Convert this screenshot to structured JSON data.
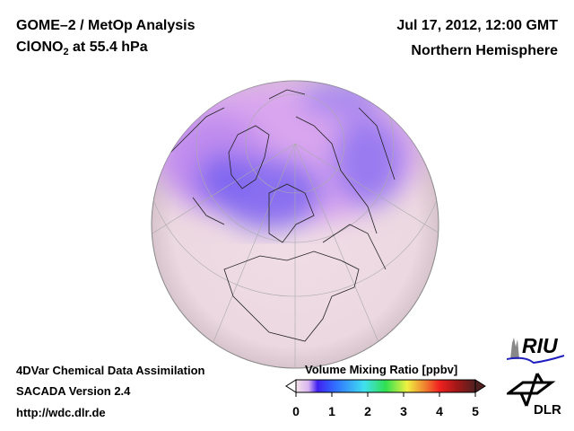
{
  "header": {
    "title_line1": "GOME–2 / MetOp Analysis",
    "title_line2_prefix": "ClONO",
    "title_line2_sub": "2",
    "title_line2_suffix": " at 55.4 hPa",
    "date": "Jul 17, 2012, 12:00 GMT",
    "region": "Northern Hemisphere"
  },
  "footer": {
    "line1": "4DVar Chemical Data Assimilation",
    "line2": "SACADA Version 2.4",
    "line3": "http://wdc.dlr.de"
  },
  "colorbar": {
    "title": "Volume Mixing Ratio [ppbv]",
    "ticks": [
      "0",
      "1",
      "2",
      "3",
      "4",
      "5"
    ],
    "range": [
      0,
      5
    ],
    "colors": [
      "#f4e4ea",
      "#d8b4f0",
      "#4020f0",
      "#3070ff",
      "#40e0f0",
      "#30e050",
      "#f0f040",
      "#f08030",
      "#f02020",
      "#a01818",
      "#502020"
    ]
  },
  "logos": {
    "riu": "RIU",
    "dlr": "DLR"
  }
}
